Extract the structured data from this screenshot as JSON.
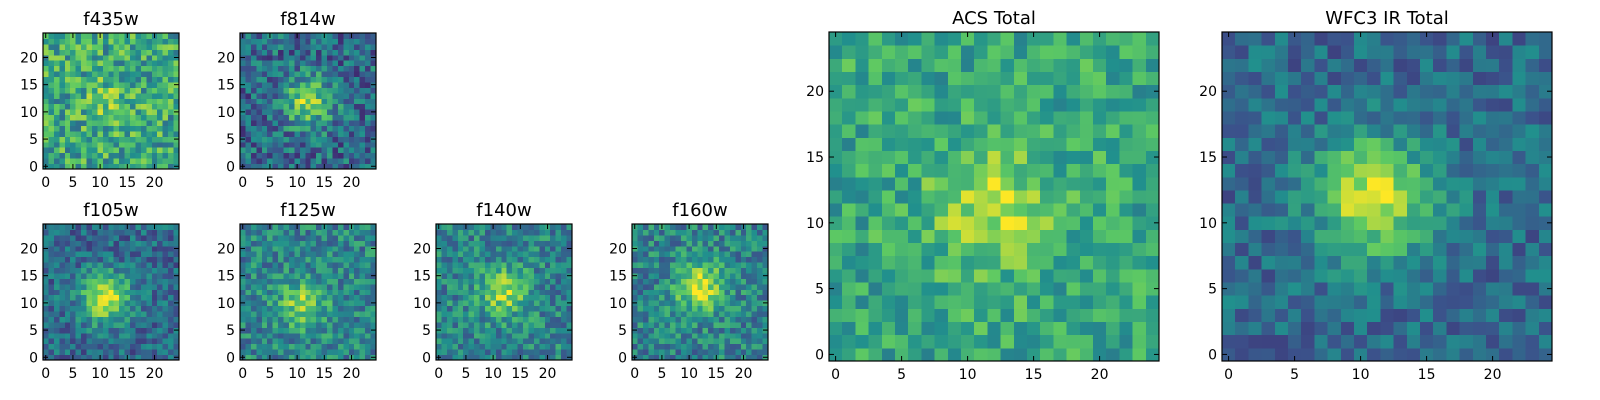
{
  "figure": {
    "colormap": [
      "#440154",
      "#3b528b",
      "#21908d",
      "#5dc963",
      "#fde725"
    ],
    "background": "#ffffff"
  },
  "chart_data": [
    {
      "type": "heatmap",
      "title": "f435w",
      "grid_size": 25,
      "xticks": [
        0,
        5,
        10,
        15,
        20
      ],
      "yticks": [
        0,
        5,
        10,
        15,
        20
      ],
      "peak": [
        12,
        12
      ],
      "peak_strength": 0.15,
      "noise": 0.5,
      "base": 0.6,
      "seed": 11
    },
    {
      "type": "heatmap",
      "title": "f814w",
      "grid_size": 25,
      "xticks": [
        0,
        5,
        10,
        15,
        20
      ],
      "yticks": [
        0,
        5,
        10,
        15,
        20
      ],
      "peak": [
        12,
        12
      ],
      "peak_strength": 0.5,
      "noise": 0.45,
      "base": 0.35,
      "seed": 23
    },
    {
      "type": "heatmap",
      "title": "f105w",
      "grid_size": 25,
      "xticks": [
        0,
        5,
        10,
        15,
        20
      ],
      "yticks": [
        0,
        5,
        10,
        15,
        20
      ],
      "peak": [
        11,
        11
      ],
      "peak_strength": 0.6,
      "noise": 0.35,
      "base": 0.35,
      "seed": 37
    },
    {
      "type": "heatmap",
      "title": "f125w",
      "grid_size": 25,
      "xticks": [
        0,
        5,
        10,
        15,
        20
      ],
      "yticks": [
        0,
        5,
        10,
        15,
        20
      ],
      "peak": [
        11,
        10
      ],
      "peak_strength": 0.35,
      "noise": 0.4,
      "base": 0.45,
      "seed": 41
    },
    {
      "type": "heatmap",
      "title": "f140w",
      "grid_size": 25,
      "xticks": [
        0,
        5,
        10,
        15,
        20
      ],
      "yticks": [
        0,
        5,
        10,
        15,
        20
      ],
      "peak": [
        12,
        12
      ],
      "peak_strength": 0.4,
      "noise": 0.4,
      "base": 0.45,
      "seed": 53
    },
    {
      "type": "heatmap",
      "title": "f160w",
      "grid_size": 25,
      "xticks": [
        0,
        5,
        10,
        15,
        20
      ],
      "yticks": [
        0,
        5,
        10,
        15,
        20
      ],
      "peak": [
        12,
        13
      ],
      "peak_strength": 0.5,
      "noise": 0.4,
      "base": 0.45,
      "seed": 67
    },
    {
      "type": "heatmap",
      "title": "ACS Total",
      "grid_size": 25,
      "xticks": [
        0,
        5,
        10,
        15,
        20
      ],
      "yticks": [
        0,
        5,
        10,
        15,
        20
      ],
      "peak": [
        12,
        11
      ],
      "peak_strength": 0.3,
      "noise": 0.35,
      "base": 0.6,
      "seed": 79
    },
    {
      "type": "heatmap",
      "title": "WFC3 IR Total",
      "grid_size": 25,
      "xticks": [
        0,
        5,
        10,
        15,
        20
      ],
      "yticks": [
        0,
        5,
        10,
        15,
        20
      ],
      "peak": [
        11,
        12
      ],
      "peak_strength": 0.6,
      "noise": 0.3,
      "base": 0.35,
      "seed": 97
    }
  ]
}
